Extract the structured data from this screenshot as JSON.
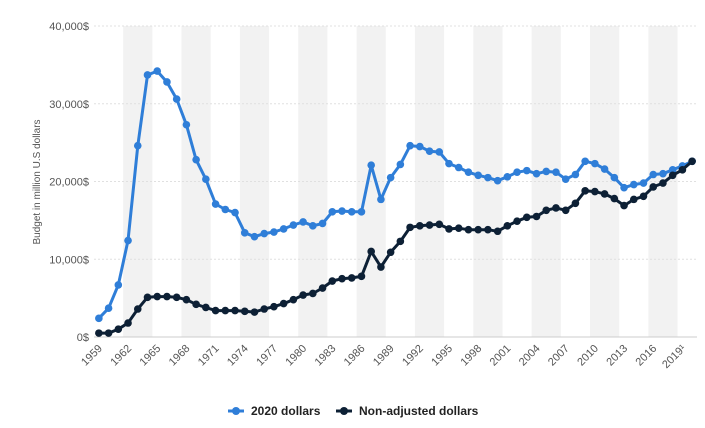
{
  "chart_data": {
    "type": "line",
    "title": "",
    "xlabel": "",
    "ylabel": "Budget in million U.S dollars",
    "ylim": [
      0,
      40000
    ],
    "y_ticks": [
      0,
      10000,
      20000,
      30000,
      40000
    ],
    "y_tick_labels": [
      "0$",
      "10,000$",
      "20,000$",
      "30,000$",
      "40,000$"
    ],
    "x_start": 1959,
    "x_end": 2020,
    "x_tick_years": [
      1959,
      1962,
      1965,
      1968,
      1971,
      1974,
      1977,
      1980,
      1983,
      1986,
      1989,
      1992,
      1995,
      1998,
      2001,
      2004,
      2007,
      2010,
      2013,
      2016,
      2019
    ],
    "x_tick_labels": [
      "1959",
      "1962",
      "1965",
      "1968",
      "1971",
      "1974",
      "1977",
      "1980",
      "1983",
      "1986",
      "1989",
      "1992",
      "1995",
      "1998",
      "2001",
      "2004",
      "2007",
      "2010",
      "2013",
      "2016",
      "2019¹"
    ],
    "grid": true,
    "legend_position": "bottom-center",
    "series": [
      {
        "name": "2020 dollars",
        "color": "#2f7ed8",
        "values": [
          2400,
          3700,
          6700,
          12400,
          24600,
          33700,
          34200,
          32800,
          30600,
          27300,
          22800,
          20300,
          17100,
          16400,
          16000,
          13400,
          12900,
          13300,
          13500,
          13900,
          14400,
          14800,
          14300,
          14600,
          16100,
          16200,
          16100,
          16100,
          22100,
          17700,
          20500,
          22200,
          24600,
          24500,
          23900,
          23800,
          22300,
          21800,
          21200,
          20800,
          20500,
          20100,
          20600,
          21200,
          21400,
          21000,
          21300,
          21200,
          20300,
          20900,
          22600,
          22300,
          21600,
          20500,
          19200,
          19600,
          19800,
          20900,
          21000,
          21500,
          22000,
          22600
        ]
      },
      {
        "name": "Non-adjusted dollars",
        "color": "#0d2035",
        "values": [
          500,
          500,
          1000,
          1800,
          3600,
          5100,
          5200,
          5200,
          5100,
          4800,
          4200,
          3800,
          3400,
          3400,
          3400,
          3300,
          3200,
          3600,
          3900,
          4300,
          4800,
          5400,
          5600,
          6300,
          7200,
          7500,
          7600,
          7800,
          11000,
          9000,
          10900,
          12300,
          14100,
          14300,
          14400,
          14500,
          13900,
          14000,
          13800,
          13800,
          13800,
          13600,
          14300,
          14900,
          15400,
          15500,
          16300,
          16600,
          16300,
          17200,
          18800,
          18700,
          18400,
          17800,
          16900,
          17700,
          18100,
          19300,
          19800,
          20800,
          21500,
          22600
        ]
      }
    ]
  }
}
